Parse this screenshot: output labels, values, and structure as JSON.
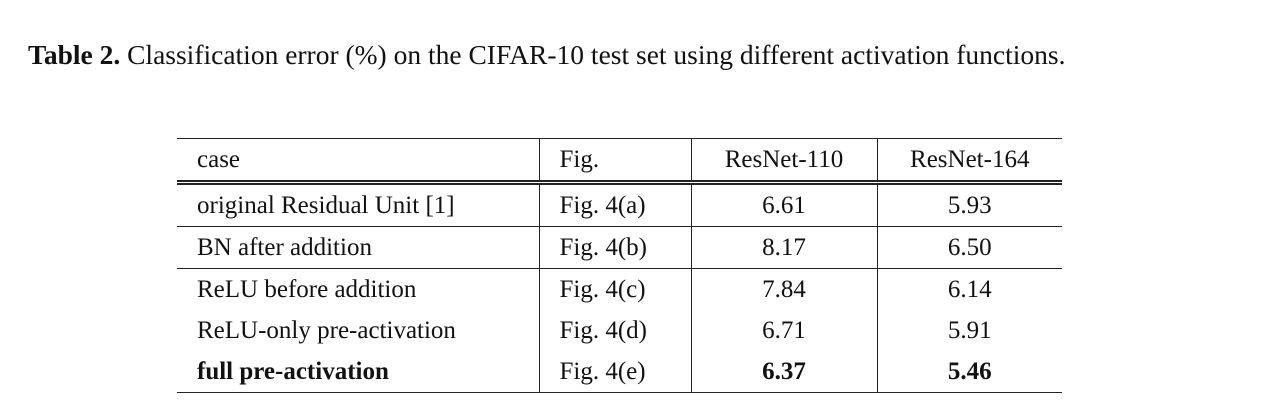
{
  "caption": {
    "label": "Table 2.",
    "text": "Classification error (%) on the CIFAR-10 test set using different activation functions."
  },
  "table": {
    "header": [
      "case",
      "Fig.",
      "ResNet-110",
      "ResNet-164"
    ],
    "rows": [
      [
        "original Residual Unit [1]",
        "Fig. 4(a)",
        "6.61",
        "5.93"
      ],
      [
        "BN after addition",
        "Fig. 4(b)",
        "8.17",
        "6.50"
      ],
      [
        "ReLU before addition",
        "Fig. 4(c)",
        "7.84",
        "6.14"
      ],
      [
        "ReLU-only pre-activation",
        "Fig. 4(d)",
        "6.71",
        "5.91"
      ],
      [
        "full pre-activation",
        "Fig. 4(e)",
        "6.37",
        "5.46"
      ]
    ]
  }
}
